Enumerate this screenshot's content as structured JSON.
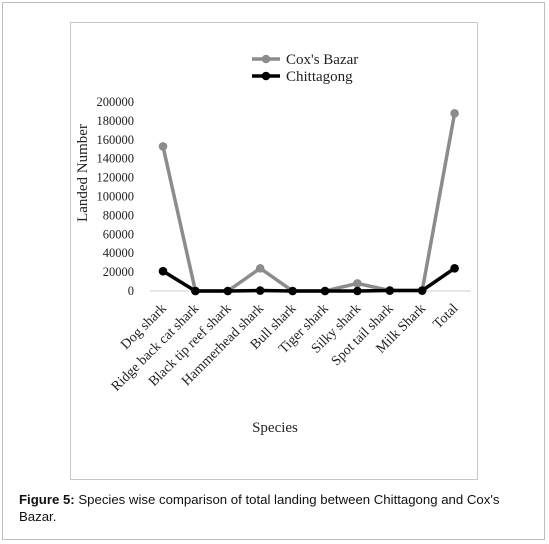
{
  "caption": {
    "label": "Figure 5:",
    "text": " Species wise comparison of total landing between Chittagong and Cox's Bazar."
  },
  "chart_data": {
    "type": "line",
    "title": "",
    "xlabel": "Species",
    "ylabel": "Landed Number",
    "ylim": [
      0,
      200000
    ],
    "yticks": [
      0,
      20000,
      40000,
      60000,
      80000,
      100000,
      120000,
      140000,
      160000,
      180000,
      200000
    ],
    "grid": false,
    "legend_position": "top",
    "categories": [
      "Dog shark",
      "Ridge back cat shark",
      "Black tip reef shark",
      "Hammerhead shark",
      "Bull shark",
      "Tiger shark",
      "Silky shark",
      "Spot tail shark",
      "Milk Shark",
      "Total"
    ],
    "series": [
      {
        "name": "Cox's Bazar",
        "color": "#8c8c8c",
        "values": [
          153000,
          0,
          0,
          24000,
          0,
          0,
          8000,
          500,
          500,
          188000
        ]
      },
      {
        "name": "Chittagong",
        "color": "#000000",
        "values": [
          21000,
          0,
          0,
          500,
          0,
          0,
          0,
          500,
          500,
          24000
        ]
      }
    ]
  }
}
